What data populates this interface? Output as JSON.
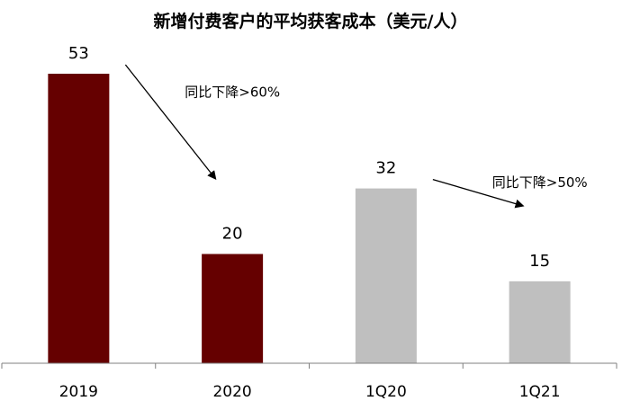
{
  "chart_data": {
    "type": "bar",
    "title": "新增付费客户的平均获客成本（美元/人）",
    "xlabel": "",
    "ylabel": "",
    "categories": [
      "2019",
      "2020",
      "1Q20",
      "1Q21"
    ],
    "values": [
      53,
      20,
      32,
      15
    ],
    "data_labels": [
      "53",
      "20",
      "32",
      "15"
    ],
    "bar_colors": [
      "#650000",
      "#650000",
      "#bfbfbf",
      "#bfbfbf"
    ],
    "ylim": [
      0,
      53
    ],
    "grid": false,
    "legend": "none",
    "annotations": [
      {
        "text": "同比下降>60%",
        "from_category": "2019",
        "to_category": "2020"
      },
      {
        "text": "同比下降>50%",
        "from_category": "1Q20",
        "to_category": "1Q21"
      }
    ]
  }
}
